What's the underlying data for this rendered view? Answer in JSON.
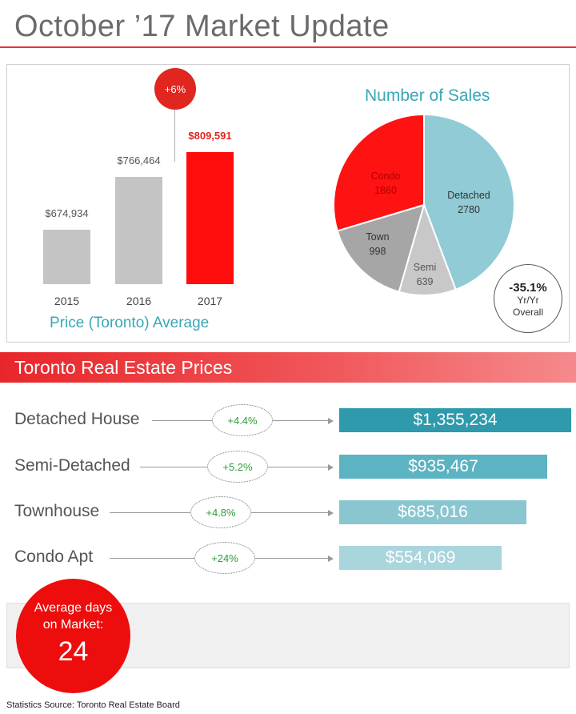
{
  "title": "October ’17 Market Update",
  "price_chart": {
    "caption": "Price (Toronto) Average",
    "growth_badge": "+6%",
    "bars": [
      {
        "year": "2015",
        "value": 674934,
        "label": "$674,934",
        "color": "#c4c4c4",
        "highlight": false
      },
      {
        "year": "2016",
        "value": 766464,
        "label": "$766,464",
        "color": "#c4c4c4",
        "highlight": false
      },
      {
        "year": "2017",
        "value": 809591,
        "label": "$809,591",
        "color": "#ff0d0d",
        "highlight": true
      }
    ]
  },
  "sales_chart": {
    "title": "Number of Sales",
    "slices": [
      {
        "name": "Detached",
        "value": 2780,
        "label_value": "2780",
        "color": "#90cbd6",
        "text_color": "#333333"
      },
      {
        "name": "Semi",
        "value": 639,
        "label_value": "639",
        "color": "#c8c8c8",
        "text_color": "#555555"
      },
      {
        "name": "Town",
        "value": 998,
        "label_value": "998",
        "color": "#a6a6a6",
        "text_color": "#333333"
      },
      {
        "name": "Condo",
        "value": 1860,
        "label_value": "1860",
        "color": "#ff1212",
        "text_color": "#b00000"
      }
    ],
    "yoy_value": "-35.1%",
    "yoy_line1": "Yr/Yr",
    "yoy_line2": "Overall"
  },
  "prices_section": {
    "title": "Toronto Real Estate Prices",
    "rows": [
      {
        "label": "Detached House",
        "change": "+4.4%",
        "price": "$1,355,234",
        "value": 1355234,
        "color": "#2e9aab"
      },
      {
        "label": "Semi-Detached",
        "change": "+5.2%",
        "price": "$935,467",
        "value": 935467,
        "color": "#5cb3c2"
      },
      {
        "label": "Townhouse",
        "change": "+4.8%",
        "price": "$685,016",
        "value": 685016,
        "color": "#8ac6d0"
      },
      {
        "label": "Condo Apt",
        "change": "+24%",
        "price": "$554,069",
        "value": 554069,
        "color": "#a9d5dc"
      }
    ]
  },
  "days_on_market": {
    "label_line1": "Average days",
    "label_line2": "on Market:",
    "value": "24"
  },
  "source": "Statistics Source: Toronto Real Estate Board"
}
